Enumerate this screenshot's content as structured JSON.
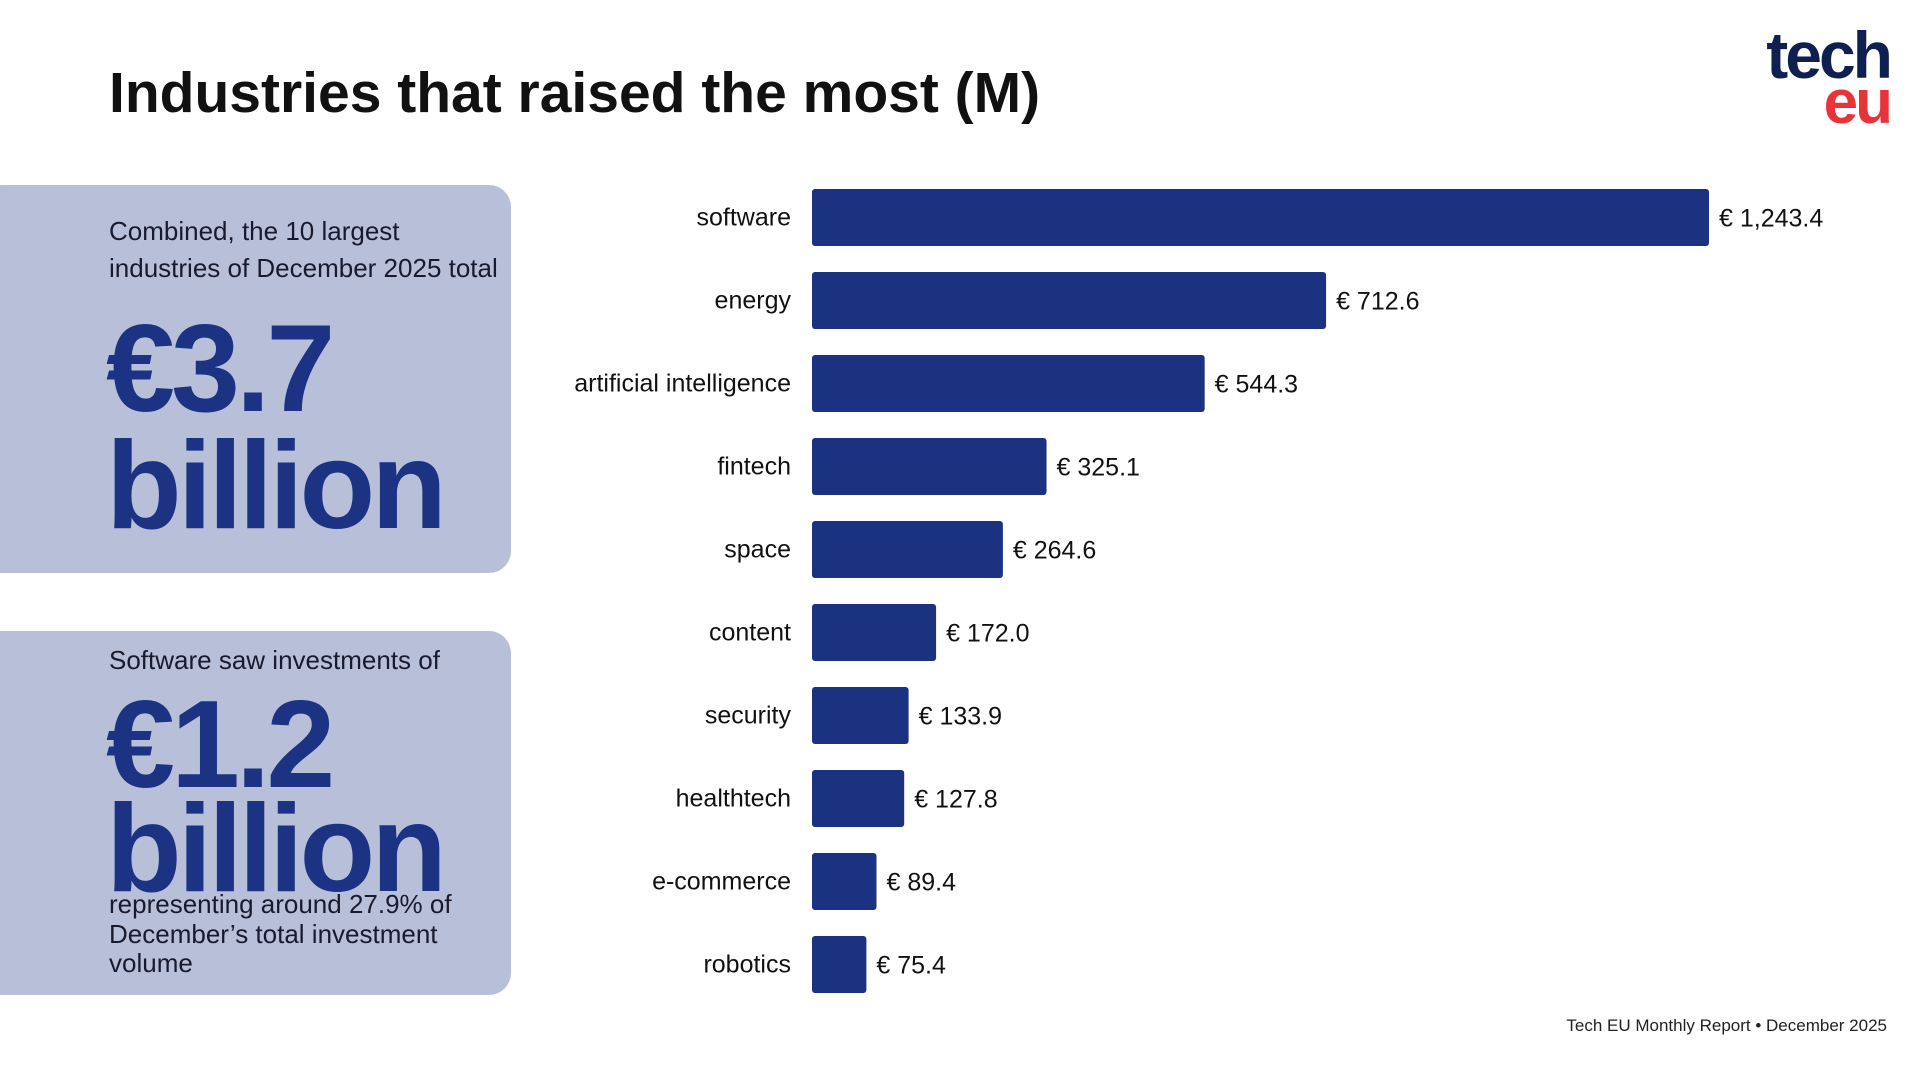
{
  "header": {
    "title": "Industries that raised the most (M)",
    "logo_top": "tech",
    "logo_bottom": "eu"
  },
  "panels": [
    {
      "intro": [
        "Combined, the 10 largest",
        "industries of December 2025 total"
      ],
      "big": [
        "€3.7",
        "billion"
      ],
      "note": []
    },
    {
      "intro": [
        "Software saw investments of"
      ],
      "big": [
        "€1.2",
        "billion"
      ],
      "note": [
        "representing around 27.9% of",
        "December’s total investment",
        "volume"
      ]
    }
  ],
  "chart_data": {
    "type": "hbar",
    "categories": [
      "software",
      "energy",
      "artificial intelligence",
      "fintech",
      "space",
      "content",
      "security",
      "healthtech",
      "e-commerce",
      "robotics"
    ],
    "values": [
      1243.4,
      712.6,
      544.3,
      325.1,
      264.6,
      172.0,
      133.9,
      127.8,
      89.4,
      75.4
    ],
    "value_labels": [
      "€ 1,243.4",
      "€ 712.6",
      "€ 544.3",
      "€ 325.1",
      "€ 264.6",
      "€ 172.0",
      "€ 133.9",
      "€ 127.8",
      "€ 89.4",
      "€ 75.4"
    ],
    "color": "#1a3280"
  },
  "footer": "Tech EU Monthly Report • December 2025"
}
